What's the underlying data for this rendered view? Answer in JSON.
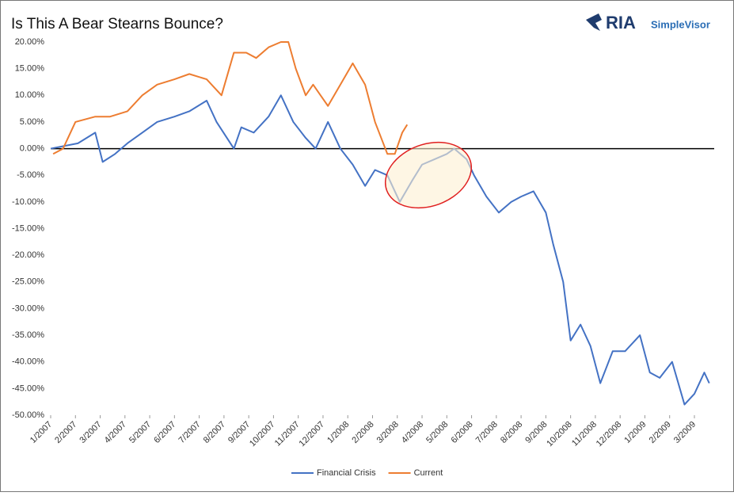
{
  "chart_data": {
    "type": "line",
    "title": "Is This A Bear Stearns Bounce?",
    "logo": "RIA",
    "logo_sub": "SimpleVisor",
    "xlim": [
      0,
      26.8
    ],
    "xticks": [
      {
        "value": 0,
        "label": "1/2007"
      },
      {
        "value": 1,
        "label": "2/2007"
      },
      {
        "value": 2,
        "label": "3/2007"
      },
      {
        "value": 3,
        "label": "4/2007"
      },
      {
        "value": 4,
        "label": "5/2007"
      },
      {
        "value": 5,
        "label": "6/2007"
      },
      {
        "value": 6,
        "label": "7/2007"
      },
      {
        "value": 7,
        "label": "8/2007"
      },
      {
        "value": 8,
        "label": "9/2007"
      },
      {
        "value": 9,
        "label": "10/2007"
      },
      {
        "value": 10,
        "label": "11/2007"
      },
      {
        "value": 11,
        "label": "12/2007"
      },
      {
        "value": 12,
        "label": "1/2008"
      },
      {
        "value": 13,
        "label": "2/2008"
      },
      {
        "value": 14,
        "label": "3/2008"
      },
      {
        "value": 15,
        "label": "4/2008"
      },
      {
        "value": 16,
        "label": "5/2008"
      },
      {
        "value": 17,
        "label": "6/2008"
      },
      {
        "value": 18,
        "label": "7/2008"
      },
      {
        "value": 19,
        "label": "8/2008"
      },
      {
        "value": 20,
        "label": "9/2008"
      },
      {
        "value": 21,
        "label": "10/2008"
      },
      {
        "value": 22,
        "label": "11/2008"
      },
      {
        "value": 23,
        "label": "12/2008"
      },
      {
        "value": 24,
        "label": "1/2009"
      },
      {
        "value": 25,
        "label": "2/2009"
      },
      {
        "value": 26,
        "label": "3/2009"
      }
    ],
    "ylim": [
      -50,
      20
    ],
    "yticks": [
      {
        "value": 20,
        "label": "20.00%"
      },
      {
        "value": 15,
        "label": "15.00%"
      },
      {
        "value": 10,
        "label": "10.00%"
      },
      {
        "value": 5,
        "label": "5.00%"
      },
      {
        "value": 0,
        "label": "0.00%"
      },
      {
        "value": -5,
        "label": "-5.00%"
      },
      {
        "value": -10,
        "label": "-10.00%"
      },
      {
        "value": -15,
        "label": "-15.00%"
      },
      {
        "value": -20,
        "label": "-20.00%"
      },
      {
        "value": -25,
        "label": "-25.00%"
      },
      {
        "value": -30,
        "label": "-30.00%"
      },
      {
        "value": -35,
        "label": "-35.00%"
      },
      {
        "value": -40,
        "label": "-40.00%"
      },
      {
        "value": -45,
        "label": "-45.00%"
      },
      {
        "value": -50,
        "label": "-50.00%"
      }
    ],
    "series": [
      {
        "name": "Financial Crisis",
        "color": "#4472c4",
        "x": [
          0,
          1.1,
          1.8,
          2.1,
          2.6,
          3.1,
          3.7,
          4.3,
          5,
          5.6,
          6.3,
          6.7,
          7.4,
          7.7,
          8.2,
          8.8,
          9.3,
          9.8,
          10.3,
          10.7,
          11.2,
          11.7,
          12.2,
          12.7,
          13.1,
          13.6,
          14.1,
          14.6,
          15,
          15.5,
          16,
          16.3,
          16.8,
          17.1,
          17.6,
          18.1,
          18.6,
          19,
          19.5,
          20,
          20.3,
          20.7,
          21,
          21.4,
          21.8,
          22.2,
          22.7,
          23.2,
          23.8,
          24.2,
          24.6,
          25.1,
          25.6,
          26,
          26.4,
          26.6
        ],
        "values": [
          0,
          1,
          3,
          -2.5,
          -1,
          1,
          3,
          5,
          6,
          7,
          9,
          5,
          0,
          4,
          3,
          6,
          10,
          5,
          2,
          0,
          5,
          0,
          -3,
          -7,
          -4,
          -5,
          -10,
          -6,
          -3,
          -2,
          -1,
          0,
          -2,
          -5,
          -9,
          -12,
          -10,
          -9,
          -8,
          -12,
          -18,
          -25,
          -36,
          -33,
          -37,
          -44,
          -38,
          -38,
          -35,
          -42,
          -43,
          -40,
          -48,
          -46,
          -42,
          -44
        ]
      },
      {
        "name": "Current",
        "color": "#ed7d31",
        "x": [
          0.1,
          0.5,
          1,
          1.8,
          2.4,
          3.1,
          3.7,
          4.3,
          5,
          5.6,
          6.3,
          6.9,
          7.4,
          7.9,
          8.3,
          8.8,
          9.3,
          9.6,
          9.9,
          10.3,
          10.6,
          10.9,
          11.2,
          11.7,
          12.2,
          12.7,
          13.1,
          13.6,
          13.9,
          14.2,
          14.4
        ],
        "values": [
          -1,
          0,
          5,
          6,
          6,
          7,
          10,
          12,
          13,
          14,
          13,
          10,
          18,
          18,
          17,
          19,
          20,
          20,
          15,
          10,
          12,
          10,
          8,
          12,
          16,
          12,
          5,
          -1,
          -1,
          3,
          4.5
        ]
      }
    ]
  }
}
